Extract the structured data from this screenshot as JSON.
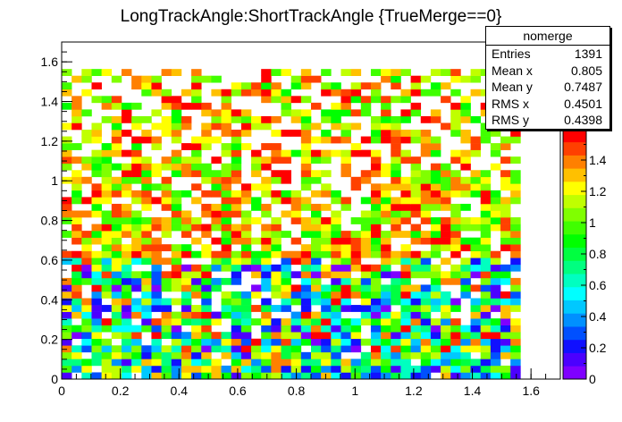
{
  "chart_data": {
    "type": "heatmap",
    "title": "LongTrackAngle:ShortTrackAngle {TrueMerge==0}",
    "xlabel": "",
    "ylabel": "",
    "xlim": [
      0,
      1.7
    ],
    "ylim": [
      0,
      1.7
    ],
    "x_ticks": [
      "0",
      "0.2",
      "0.4",
      "0.6",
      "0.8",
      "1",
      "1.2",
      "1.4",
      "1.6"
    ],
    "y_ticks": [
      "0",
      "0.2",
      "0.4",
      "0.6",
      "0.8",
      "1",
      "1.2",
      "1.4",
      "1.6"
    ],
    "bins": {
      "nx": 50,
      "ny": 50,
      "x_range": [
        0,
        1.7
      ],
      "y_range": [
        0,
        1.7
      ],
      "occupied_up_to": 1.58
    },
    "z_range": [
      0,
      1.6
    ],
    "z_ticks": [
      "0",
      "0.2",
      "0.4",
      "0.6",
      "0.8",
      "1",
      "1.2",
      "1.4"
    ],
    "palette": [
      "#7f00ff",
      "#4b00ff",
      "#1010ff",
      "#0050ff",
      "#0090ff",
      "#00c8ff",
      "#00ffff",
      "#00ffc0",
      "#00ff80",
      "#00ff40",
      "#00ff00",
      "#40ff00",
      "#80ff00",
      "#c0ff00",
      "#ffff00",
      "#ffc000",
      "#ff8000",
      "#ff4000",
      "#ff0000"
    ],
    "stats_box": {
      "title": "nomerge",
      "entries": [
        {
          "label": "Entries",
          "value": "1391"
        },
        {
          "label": "Mean x",
          "value": "0.805"
        },
        {
          "label": "Mean y",
          "value": "0.7487"
        },
        {
          "label": "RMS x",
          "value": "0.4501"
        },
        {
          "label": "RMS y",
          "value": "0.4398"
        }
      ]
    }
  }
}
